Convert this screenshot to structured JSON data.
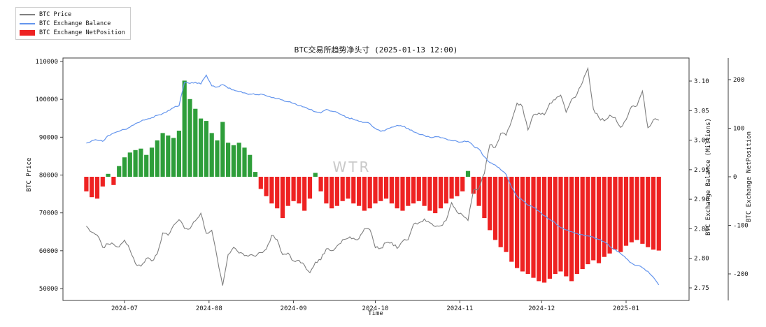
{
  "title": "BTC交易所趋势净头寸 (2025-01-13 12:00)",
  "watermark": "WTR",
  "legend": {
    "items": [
      {
        "label": "BTC Price",
        "type": "line",
        "color": "#7f7f7f"
      },
      {
        "label": "BTC Exchange Balance",
        "type": "line",
        "color": "#6495ed"
      },
      {
        "label": "BTC Exchange NetPosition",
        "type": "patch",
        "color": "#ee2222"
      }
    ]
  },
  "colors": {
    "price_line": "#7f7f7f",
    "balance_line": "#6495ed",
    "net_positive": "#2e9e3a",
    "net_negative": "#ee2222",
    "watermark": "#c9c9c9",
    "spine": "#3f3f3f",
    "tick_text": "#151515"
  },
  "axes": {
    "x": {
      "label": "Time",
      "ticks": [
        "2024-07",
        "2024-08",
        "2024-09",
        "2024-10",
        "2024-11",
        "2024-12",
        "2025-01"
      ]
    },
    "price": {
      "label": "BTC Price",
      "ticks": [
        50000,
        60000,
        70000,
        80000,
        90000,
        100000,
        110000
      ]
    },
    "balance": {
      "label": "BTC Exchange Balance (Millions)",
      "ticks": [
        "2.75",
        "2.80",
        "2.85",
        "2.90",
        "2.95",
        "3.00",
        "3.05",
        "3.10"
      ]
    },
    "netposition": {
      "label": "BTC Exchange NetPosition",
      "ticks": [
        -200,
        -100,
        0,
        100,
        200
      ]
    }
  },
  "chart_data": {
    "type": "mixed",
    "title": "BTC交易所趋势净头寸 (2025-01-13 12:00)",
    "xlabel": "Time",
    "legend_position": "upper-left-outside",
    "grid": false,
    "axis_ranges": {
      "price": [
        48500,
        111500
      ],
      "balance": [
        2.74,
        3.12
      ],
      "netposition": [
        -230,
        240
      ]
    },
    "x": [
      "2024-06-17",
      "2024-06-19",
      "2024-06-21",
      "2024-06-23",
      "2024-06-25",
      "2024-06-27",
      "2024-06-29",
      "2024-07-01",
      "2024-07-03",
      "2024-07-05",
      "2024-07-07",
      "2024-07-09",
      "2024-07-11",
      "2024-07-13",
      "2024-07-15",
      "2024-07-17",
      "2024-07-19",
      "2024-07-21",
      "2024-07-23",
      "2024-07-25",
      "2024-07-27",
      "2024-07-29",
      "2024-07-31",
      "2024-08-02",
      "2024-08-04",
      "2024-08-06",
      "2024-08-08",
      "2024-08-10",
      "2024-08-12",
      "2024-08-14",
      "2024-08-16",
      "2024-08-18",
      "2024-08-20",
      "2024-08-22",
      "2024-08-24",
      "2024-08-26",
      "2024-08-28",
      "2024-08-30",
      "2024-09-01",
      "2024-09-03",
      "2024-09-05",
      "2024-09-07",
      "2024-09-09",
      "2024-09-11",
      "2024-09-13",
      "2024-09-15",
      "2024-09-17",
      "2024-09-19",
      "2024-09-21",
      "2024-09-23",
      "2024-09-25",
      "2024-09-27",
      "2024-09-29",
      "2024-10-01",
      "2024-10-03",
      "2024-10-05",
      "2024-10-07",
      "2024-10-09",
      "2024-10-11",
      "2024-10-13",
      "2024-10-15",
      "2024-10-17",
      "2024-10-19",
      "2024-10-21",
      "2024-10-23",
      "2024-10-25",
      "2024-10-27",
      "2024-10-29",
      "2024-10-31",
      "2024-11-02",
      "2024-11-04",
      "2024-11-06",
      "2024-11-08",
      "2024-11-10",
      "2024-11-12",
      "2024-11-14",
      "2024-11-16",
      "2024-11-18",
      "2024-11-20",
      "2024-11-22",
      "2024-11-24",
      "2024-11-26",
      "2024-11-28",
      "2024-11-30",
      "2024-12-02",
      "2024-12-04",
      "2024-12-06",
      "2024-12-08",
      "2024-12-10",
      "2024-12-12",
      "2024-12-14",
      "2024-12-16",
      "2024-12-18",
      "2024-12-20",
      "2024-12-22",
      "2024-12-24",
      "2024-12-26",
      "2024-12-28",
      "2024-12-30",
      "2025-01-01",
      "2025-01-03",
      "2025-01-05",
      "2025-01-07",
      "2025-01-09",
      "2025-01-11",
      "2025-01-13"
    ],
    "series": [
      {
        "name": "BTC Price",
        "type": "line",
        "axis": "price",
        "color": "#7f7f7f",
        "values": [
          66500,
          64900,
          64100,
          60900,
          61800,
          61700,
          61000,
          62800,
          60200,
          56600,
          55900,
          58000,
          57300,
          59200,
          64700,
          64100,
          66700,
          68200,
          65900,
          65800,
          67900,
          69900,
          64600,
          65400,
          58100,
          50800,
          59000,
          60900,
          59400,
          58700,
          58900,
          58500,
          59500,
          60400,
          64100,
          62900,
          59000,
          59400,
          57300,
          57500,
          56200,
          54200,
          57000,
          57600,
          60500,
          60000,
          61300,
          62900,
          63300,
          63300,
          63200,
          65800,
          65600,
          60800,
          60700,
          62100,
          62200,
          60600,
          62500,
          62900,
          67000,
          67400,
          68400,
          67400,
          66400,
          66600,
          68000,
          72700,
          70200,
          69400,
          68000,
          76000,
          76500,
          80400,
          88000,
          87300,
          91000,
          90500,
          94300,
          99000,
          98000,
          91900,
          95900,
          96400,
          95900,
          99000,
          99900,
          101100,
          96600,
          100000,
          101400,
          104500,
          108200,
          97500,
          95200,
          94300,
          95800,
          95200,
          92600,
          94600,
          98100,
          98300,
          102200,
          92500,
          94600,
          94500
        ]
      },
      {
        "name": "BTC Exchange Balance",
        "type": "line",
        "axis": "balance",
        "color": "#6495ed",
        "values": [
          2.995,
          2.999,
          3.0,
          2.998,
          3.008,
          3.012,
          3.015,
          3.018,
          3.022,
          3.028,
          3.032,
          3.035,
          3.038,
          3.042,
          3.045,
          3.05,
          3.055,
          3.058,
          3.098,
          3.096,
          3.098,
          3.095,
          3.11,
          3.092,
          3.09,
          3.094,
          3.088,
          3.085,
          3.082,
          3.08,
          3.078,
          3.077,
          3.078,
          3.075,
          3.072,
          3.07,
          3.068,
          3.065,
          3.062,
          3.058,
          3.056,
          3.052,
          3.048,
          3.046,
          3.052,
          3.049,
          3.047,
          3.042,
          3.038,
          3.035,
          3.032,
          3.03,
          3.028,
          3.02,
          3.015,
          3.018,
          3.022,
          3.025,
          3.023,
          3.02,
          3.014,
          3.01,
          3.008,
          3.005,
          3.006,
          3.004,
          3.002,
          2.999,
          2.998,
          2.997,
          2.998,
          2.99,
          2.985,
          2.972,
          2.962,
          2.958,
          2.95,
          2.942,
          2.92,
          2.905,
          2.898,
          2.89,
          2.886,
          2.88,
          2.872,
          2.866,
          2.86,
          2.852,
          2.848,
          2.845,
          2.842,
          2.84,
          2.838,
          2.836,
          2.832,
          2.828,
          2.82,
          2.815,
          2.808,
          2.8,
          2.792,
          2.788,
          2.784,
          2.778,
          2.768,
          2.755
        ]
      },
      {
        "name": "BTC Exchange NetPosition",
        "type": "bar",
        "axis": "netposition",
        "color_positive": "#2e9e3a",
        "color_negative": "#ee2222",
        "values": [
          -30,
          -42,
          -45,
          -20,
          6,
          -17,
          22,
          40,
          50,
          55,
          58,
          45,
          60,
          75,
          90,
          85,
          80,
          95,
          198,
          160,
          140,
          120,
          115,
          90,
          75,
          113,
          70,
          65,
          70,
          60,
          45,
          10,
          -25,
          -40,
          -55,
          -65,
          -85,
          -60,
          -50,
          -55,
          -70,
          -45,
          8,
          -30,
          -55,
          -65,
          -60,
          -50,
          -45,
          -55,
          -60,
          -70,
          -65,
          -55,
          -50,
          -45,
          -55,
          -65,
          -70,
          -60,
          -55,
          -50,
          -60,
          -70,
          -75,
          -65,
          -55,
          -45,
          -40,
          -30,
          12,
          -35,
          -60,
          -85,
          -110,
          -130,
          -145,
          -155,
          -175,
          -188,
          -195,
          -200,
          -208,
          -215,
          -218,
          -210,
          -200,
          -195,
          -205,
          -215,
          -200,
          -190,
          -180,
          -172,
          -178,
          -165,
          -158,
          -150,
          -155,
          -142,
          -135,
          -130,
          -138,
          -145,
          -150,
          -152
        ]
      }
    ]
  }
}
